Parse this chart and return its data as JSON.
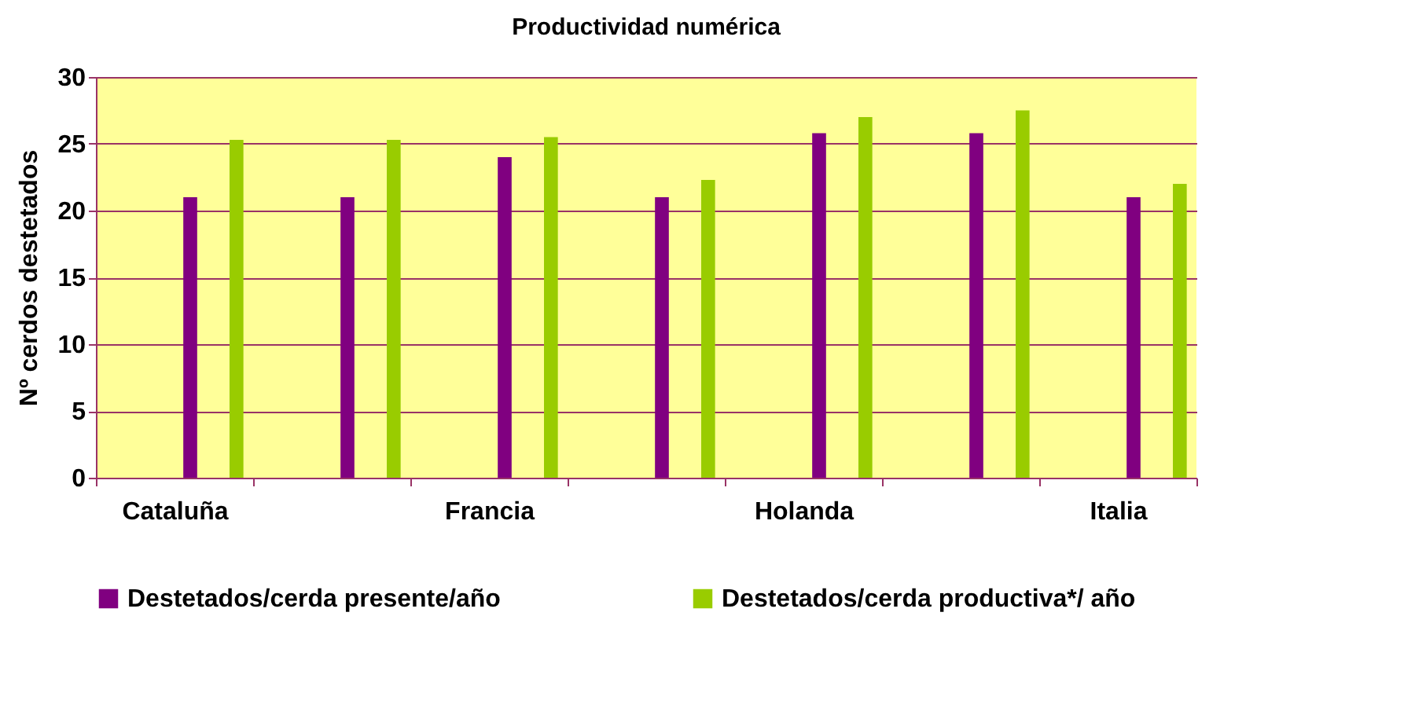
{
  "chart_data": {
    "type": "bar",
    "title": "Productividad numérica",
    "ylabel": "Nº cerdos destetados",
    "categories": [
      "Cataluña",
      null,
      "Francia",
      null,
      "Holanda",
      null,
      "Italia"
    ],
    "series": [
      {
        "name": "Destetados/cerda presente/año",
        "color": "#800080",
        "values": [
          21,
          21,
          24,
          21,
          25.8,
          25.8,
          21
        ]
      },
      {
        "name": "Destetados/cerda productiva*/ año",
        "color": "#99cc00",
        "values": [
          25.3,
          25.3,
          25.5,
          22.3,
          27,
          27.5,
          22
        ]
      }
    ],
    "ylim": [
      0,
      30
    ],
    "yticks": [
      0,
      5,
      10,
      15,
      20,
      25,
      30
    ],
    "grid": "y",
    "legend": "bottom"
  }
}
